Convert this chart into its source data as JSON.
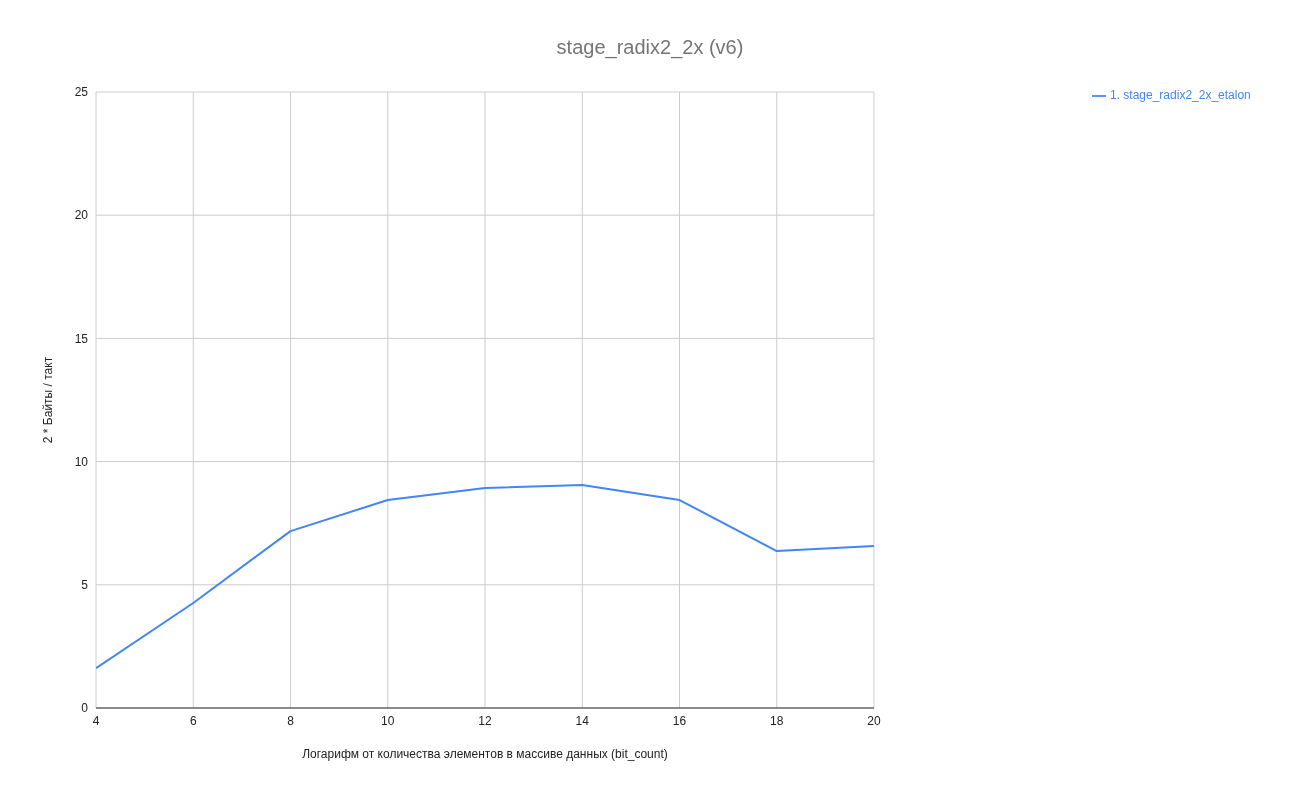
{
  "chart_data": {
    "type": "line",
    "title": "stage_radix2_2x (v6)",
    "xlabel": "Логарифм от количества элементов в массиве данных (bit_count)",
    "ylabel": "2 * Байты / такт",
    "x": [
      4,
      6,
      8,
      10,
      12,
      14,
      16,
      18,
      20
    ],
    "series": [
      {
        "name": "1. stage_radix2_2x_etalon",
        "color": "#4285f4",
        "values": [
          1.62,
          4.26,
          7.18,
          8.44,
          8.93,
          9.05,
          8.44,
          6.37,
          6.57
        ]
      }
    ],
    "xlim": [
      4,
      20
    ],
    "xticks": [
      4,
      6,
      8,
      10,
      12,
      14,
      16,
      18,
      20
    ],
    "ylim": [
      0,
      25
    ],
    "yticks": [
      0,
      5,
      10,
      15,
      20,
      25
    ],
    "grid": true,
    "legend": "top right",
    "marker": "none",
    "line_style": "solid"
  }
}
